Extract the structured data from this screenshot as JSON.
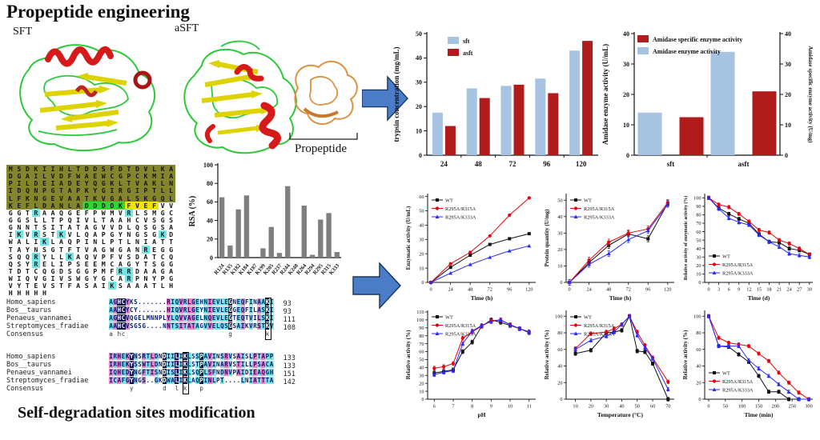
{
  "titles": {
    "top": "Propeptide engineering",
    "bottom": "Self-degradation sites modification"
  },
  "structures": {
    "left_label": "SFT",
    "right_label": "aSFT",
    "propeptide_label": "Propeptide"
  },
  "monomer_alignment": {
    "rows": [
      [
        [
          "MSDKIIHLTDDSFDTDVLKA",
          "o"
        ]
      ],
      [
        [
          "DGAILVDFWAEWCGPCKMIA",
          "o"
        ]
      ],
      [
        [
          "PILDEIADEYQGKLTVAKLN",
          "o"
        ]
      ],
      [
        [
          "IDQNPGTAPKYGIRGIPTLL",
          "o"
        ]
      ],
      [
        [
          "LFKNGEVAATKVGALSKGQL",
          "o"
        ]
      ],
      [
        [
          "KEFLDANLA",
          "o"
        ],
        [
          "DDDDK",
          "g"
        ],
        [
          "FVEF",
          "y"
        ],
        [
          "VV",
          "w"
        ]
      ],
      [
        [
          "GGT",
          "w"
        ],
        [
          "R",
          "c"
        ],
        [
          "AAQGEFPWMV",
          "w"
        ],
        [
          "R",
          "c"
        ],
        [
          "LSMGC",
          "w"
        ]
      ],
      [
        [
          "GGSLLTPQIVLTAAHCVSGS",
          "w"
        ]
      ],
      [
        [
          "GNNTSITATAGVVDLQSGSA",
          "w"
        ]
      ],
      [
        [
          "I",
          "w"
        ],
        [
          "K",
          "c"
        ],
        [
          "V",
          "w"
        ],
        [
          "R",
          "c"
        ],
        [
          "ST",
          "w"
        ],
        [
          "K",
          "c"
        ],
        [
          "VLQAPGYNGSG",
          "w"
        ],
        [
          "K",
          "c"
        ],
        [
          "D",
          "w"
        ]
      ],
      [
        [
          "WALI",
          "w"
        ],
        [
          "K",
          "c"
        ],
        [
          "LAQPINLPTLNIATT",
          "w"
        ]
      ],
      [
        [
          "TAYNSGTFTVAGWGAN",
          "w"
        ],
        [
          "R",
          "c"
        ],
        [
          "EGG",
          "w"
        ]
      ],
      [
        [
          "SQQ",
          "w"
        ],
        [
          "R",
          "c"
        ],
        [
          "YLL",
          "w"
        ],
        [
          "K",
          "c"
        ],
        [
          "AQVPFVSDATCQ",
          "w"
        ]
      ],
      [
        [
          "QSY",
          "w"
        ],
        [
          "R",
          "c"
        ],
        [
          "ELIPSEEMCAGYTSGG",
          "w"
        ]
      ],
      [
        [
          "TDTCQGDSGGPMF",
          "w"
        ],
        [
          "RR",
          "c"
        ],
        [
          "DAAGA",
          "w"
        ]
      ],
      [
        [
          "WIQVGIVSWGYGCA",
          "w"
        ],
        [
          "R",
          "c"
        ],
        [
          "PNYPG",
          "w"
        ]
      ],
      [
        [
          "VYTEVSTFASAI",
          "w"
        ],
        [
          "K",
          "c"
        ],
        [
          "SAAATLH",
          "w"
        ]
      ],
      [
        [
          "HHHHH",
          "w"
        ]
      ]
    ]
  },
  "species_alignment": {
    "names": [
      "Homo_sapiens",
      "Bos__taurus",
      "Penaeus_vannamei",
      "Streptomyces_fradiae",
      "Consensus"
    ],
    "blocks": [
      {
        "seqs": [
          "AGHCYKS.......RIQVRLGEHNIEVLEGNEQFINAAKI",
          "AAHCYCY.......HIQVRLGEYNIEVLEGGEQFILASKI",
          "AGHCVQGELMNNPLYLQVVAGELNQEVLEGTEQTVILSKI",
          "AAHCVSGSG....NNTSITATAGVVELQSGSAIKVRSTKV"
        ],
        "consensus": "a hc                         g        k ",
        "colors": "cpnnpwwwwwwwwwpccpcppcwcpccccnwcpwcwpcnc",
        "nums": [
          93,
          93,
          111,
          108
        ],
        "box_col": 39
      },
      {
        "seqs": [
          "IRHEKYNSRTLDNDIILIKLSSPAVINSRVSAISLPTAPP",
          "IRHEKYSSWTLDNDIILIKLSTPAVINARVSTILLPSACA",
          "IQHEDYNGFTISNDISLIKLSQPLSFNDNVPAIDIEAQGH",
          "ICAFGYNGS..GKDWALIKLAQPINLPT....LNIATTTA"
        ],
        "consensus": "     y       d  l k   p                 ",
        "colors": "pcpcpncwpcpcwnccncncwcncpcwcpcwpcwcpcpcc",
        "nums": [
          133,
          133,
          151,
          142
        ],
        "box_col": 19
      }
    ]
  },
  "chart_data": [
    {
      "id": "trypsin",
      "type": "bar",
      "ylabel": "trypsin concentration (mg/mL)",
      "categories": [
        "24",
        "48",
        "72",
        "96",
        "120"
      ],
      "ylim": [
        0,
        50
      ],
      "yticks": [
        0,
        10,
        20,
        30,
        40,
        50
      ],
      "series": [
        {
          "name": "sft",
          "color": "#a6c3e2",
          "values": [
            17.5,
            27.5,
            28.5,
            31.5,
            43
          ]
        },
        {
          "name": "asft",
          "color": "#b01b1b",
          "values": [
            12,
            23.5,
            29,
            25.5,
            47
          ]
        }
      ],
      "legend_position": "top-left"
    },
    {
      "id": "amidase",
      "type": "bar",
      "ylabel": "Amidase enzyme activity (U/mL)",
      "ylabel_right": "Amidase specific enzyme activity (U/mg)",
      "categories": [
        "sft",
        "asft"
      ],
      "ylim": [
        0,
        40
      ],
      "yticks": [
        0,
        10,
        20,
        30,
        40
      ],
      "yticks_right": [
        0,
        10,
        20,
        30,
        40
      ],
      "series": [
        {
          "name": "Amidase enzyme activity",
          "color": "#a6c3e2",
          "values": [
            14,
            34
          ]
        },
        {
          "name": "Amidase specific enzyme activity",
          "color": "#b01b1b",
          "values": [
            12.5,
            21
          ]
        }
      ],
      "legend_position": "top-left"
    },
    {
      "id": "rsa",
      "type": "bar",
      "ylabel": "RSA (%)",
      "categories": [
        "R124",
        "R135",
        "K182",
        "K184",
        "K187",
        "K199",
        "K205",
        "R237",
        "R244",
        "K248",
        "R264",
        "R294",
        "R295",
        "R315",
        "K333"
      ],
      "values": [
        65,
        13,
        52,
        67,
        0,
        10,
        33,
        5,
        77,
        0,
        56,
        3,
        41,
        48,
        6
      ],
      "bar_color": "#7f7f7f",
      "ylim": [
        0,
        100
      ],
      "yticks": [
        0,
        20,
        40,
        60,
        80,
        100
      ]
    },
    {
      "id": "lc1",
      "type": "line",
      "xlabel": "Time (h)",
      "ylabel": "Enzymatic activity (U/mL)",
      "x": [
        0,
        24,
        48,
        72,
        96,
        120
      ],
      "xticks": [
        0,
        24,
        48,
        72,
        96,
        120
      ],
      "xlim": [
        -4,
        128
      ],
      "ylim": [
        0,
        62
      ],
      "yticks": [
        0,
        10,
        20,
        30,
        40,
        50,
        60
      ],
      "series": [
        {
          "name": "WT",
          "color": "#111111",
          "values": [
            0,
            10.5,
            19,
            26.5,
            30.5,
            34
          ]
        },
        {
          "name": "R295A/R315A",
          "color": "#e8000b",
          "values": [
            0,
            13,
            21,
            32.5,
            47,
            59
          ]
        },
        {
          "name": "R295A/K333A",
          "color": "#2a2aff",
          "values": [
            0,
            6.5,
            12.5,
            17.5,
            22,
            25.5
          ]
        }
      ],
      "legend_position": "top-left"
    },
    {
      "id": "lc2",
      "type": "line",
      "xlabel": "Time (h)",
      "ylabel": "Protein quantity (U/mg)",
      "x": [
        0,
        24,
        48,
        72,
        96,
        120
      ],
      "xticks": [
        0,
        24,
        48,
        72,
        96,
        120
      ],
      "xlim": [
        -4,
        128
      ],
      "ylim": [
        0,
        54
      ],
      "yticks": [
        0,
        10,
        20,
        30,
        40,
        50
      ],
      "series": [
        {
          "name": "WT",
          "color": "#111111",
          "values": [
            0,
            12,
            22.5,
            29.5,
            26.5,
            48
          ]
        },
        {
          "name": "R295A/R315A",
          "color": "#e8000b",
          "values": [
            0,
            13.5,
            24.5,
            30,
            32.5,
            48.5
          ]
        },
        {
          "name": "R295A/K333A",
          "color": "#2a2aff",
          "values": [
            0,
            11,
            17.5,
            26,
            31.5,
            47.5
          ]
        }
      ],
      "legend_position": "top-left"
    },
    {
      "id": "lc3",
      "type": "line",
      "xlabel": "Time (d)",
      "ylabel": "Relative activity of enzymatic activity (%)",
      "x": [
        0,
        3,
        6,
        9,
        12,
        15,
        18,
        21,
        24,
        27,
        30
      ],
      "xticks": [
        0,
        3,
        6,
        9,
        12,
        15,
        18,
        21,
        24,
        27,
        30
      ],
      "xlim": [
        -1.2,
        31
      ],
      "ylim": [
        0,
        105
      ],
      "yticks": [
        0,
        10,
        20,
        30,
        40,
        50,
        60,
        70,
        80,
        90,
        100
      ],
      "series": [
        {
          "name": "WT",
          "color": "#111111",
          "values": [
            100,
            88,
            81,
            75,
            70,
            57,
            48,
            47,
            40,
            38,
            33
          ]
        },
        {
          "name": "R295A/R315A",
          "color": "#e8000b",
          "values": [
            100,
            92,
            89,
            81,
            72,
            62,
            59,
            50,
            46,
            40,
            33
          ]
        },
        {
          "name": "R295A/K333A",
          "color": "#2a2aff",
          "values": [
            100,
            87,
            76,
            71,
            68,
            56,
            48,
            42,
            34,
            32,
            30
          ]
        }
      ],
      "legend_position": "bottom-left"
    },
    {
      "id": "lc4",
      "type": "line",
      "xlabel": "pH",
      "ylabel": "Relative activity (%)",
      "x": [
        6,
        6.5,
        7,
        7.5,
        8,
        8.5,
        9,
        9.5,
        10,
        10.5,
        11
      ],
      "xticks": [
        6,
        7,
        8,
        9,
        10,
        11
      ],
      "xlim": [
        5.65,
        11.35
      ],
      "ylim": [
        0,
        112
      ],
      "yticks": [
        0,
        10,
        20,
        30,
        40,
        50,
        60,
        70,
        80,
        90,
        100,
        110
      ],
      "series": [
        {
          "name": "WT",
          "color": "#111111",
          "values": [
            33,
            35,
            37,
            60,
            72,
            92,
            100,
            97,
            93,
            89,
            84
          ]
        },
        {
          "name": "R295A/R315A",
          "color": "#e8000b",
          "values": [
            39,
            41,
            45,
            77,
            85,
            92,
            99,
            100,
            94,
            89,
            85
          ]
        },
        {
          "name": "R295A/K333A",
          "color": "#2a2aff",
          "values": [
            31,
            34,
            36,
            70,
            86,
            93,
            98,
            100,
            94,
            89,
            85
          ]
        }
      ],
      "legend_position": "top-left"
    },
    {
      "id": "lc5",
      "type": "line",
      "xlabel": "Temperature (°C)",
      "ylabel": "Relative activity (%)",
      "x": [
        10,
        20,
        30,
        35,
        40,
        45,
        50,
        55,
        60,
        70
      ],
      "xticks": [
        10,
        20,
        30,
        40,
        50,
        60,
        70
      ],
      "xlim": [
        4,
        74
      ],
      "ylim": [
        0,
        107
      ],
      "yticks": [
        0,
        20,
        40,
        60,
        80,
        100
      ],
      "series": [
        {
          "name": "WT",
          "color": "#111111",
          "values": [
            55,
            59,
            80,
            81,
            83,
            100,
            58,
            57,
            43,
            0
          ]
        },
        {
          "name": "R295A/R315A",
          "color": "#e8000b",
          "values": [
            61,
            79,
            81,
            85,
            90,
            100,
            81,
            65,
            50,
            21
          ]
        },
        {
          "name": "R295A/K333A",
          "color": "#2a2aff",
          "values": [
            60,
            71,
            76,
            81,
            90,
            100,
            77,
            62,
            49,
            12
          ]
        }
      ],
      "legend_position": "top-left"
    },
    {
      "id": "lc6",
      "type": "line",
      "xlabel": "Time (min)",
      "ylabel": "Relative activity (%)",
      "x": [
        0,
        30,
        60,
        90,
        120,
        150,
        180,
        210,
        240,
        270,
        300
      ],
      "xticks": [
        0,
        50,
        100,
        150,
        200,
        250,
        300
      ],
      "xlim": [
        -12,
        312
      ],
      "ylim": [
        0,
        107
      ],
      "yticks": [
        0,
        20,
        40,
        60,
        80,
        100
      ],
      "series": [
        {
          "name": "WT",
          "color": "#111111",
          "values": [
            100,
            64,
            63,
            54,
            45,
            28,
            9,
            9,
            0,
            0,
            0
          ]
        },
        {
          "name": "R295A/R315A",
          "color": "#e8000b",
          "values": [
            100,
            74,
            68,
            66,
            64,
            55,
            46,
            32,
            20,
            8,
            0
          ]
        },
        {
          "name": "R295A/K333A",
          "color": "#2a2aff",
          "values": [
            100,
            64,
            64,
            64,
            47,
            37,
            28,
            18,
            9,
            0,
            0
          ]
        }
      ],
      "legend_position": "bottom-left"
    }
  ]
}
